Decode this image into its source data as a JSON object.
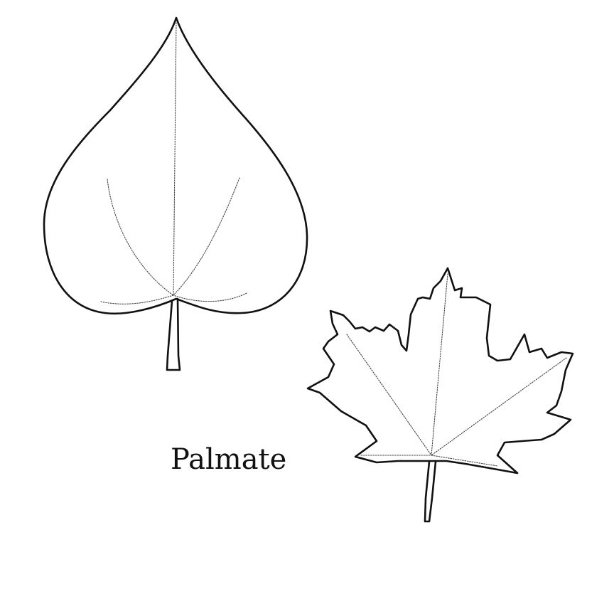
{
  "caption": "Palmate",
  "colors": {
    "background": "#ffffff",
    "outline": "#111111",
    "vein": "#444444"
  },
  "leaves": [
    {
      "name": "heart-shaped-leaf",
      "veins": 5
    },
    {
      "name": "maple-leaf",
      "veins": 5
    }
  ]
}
